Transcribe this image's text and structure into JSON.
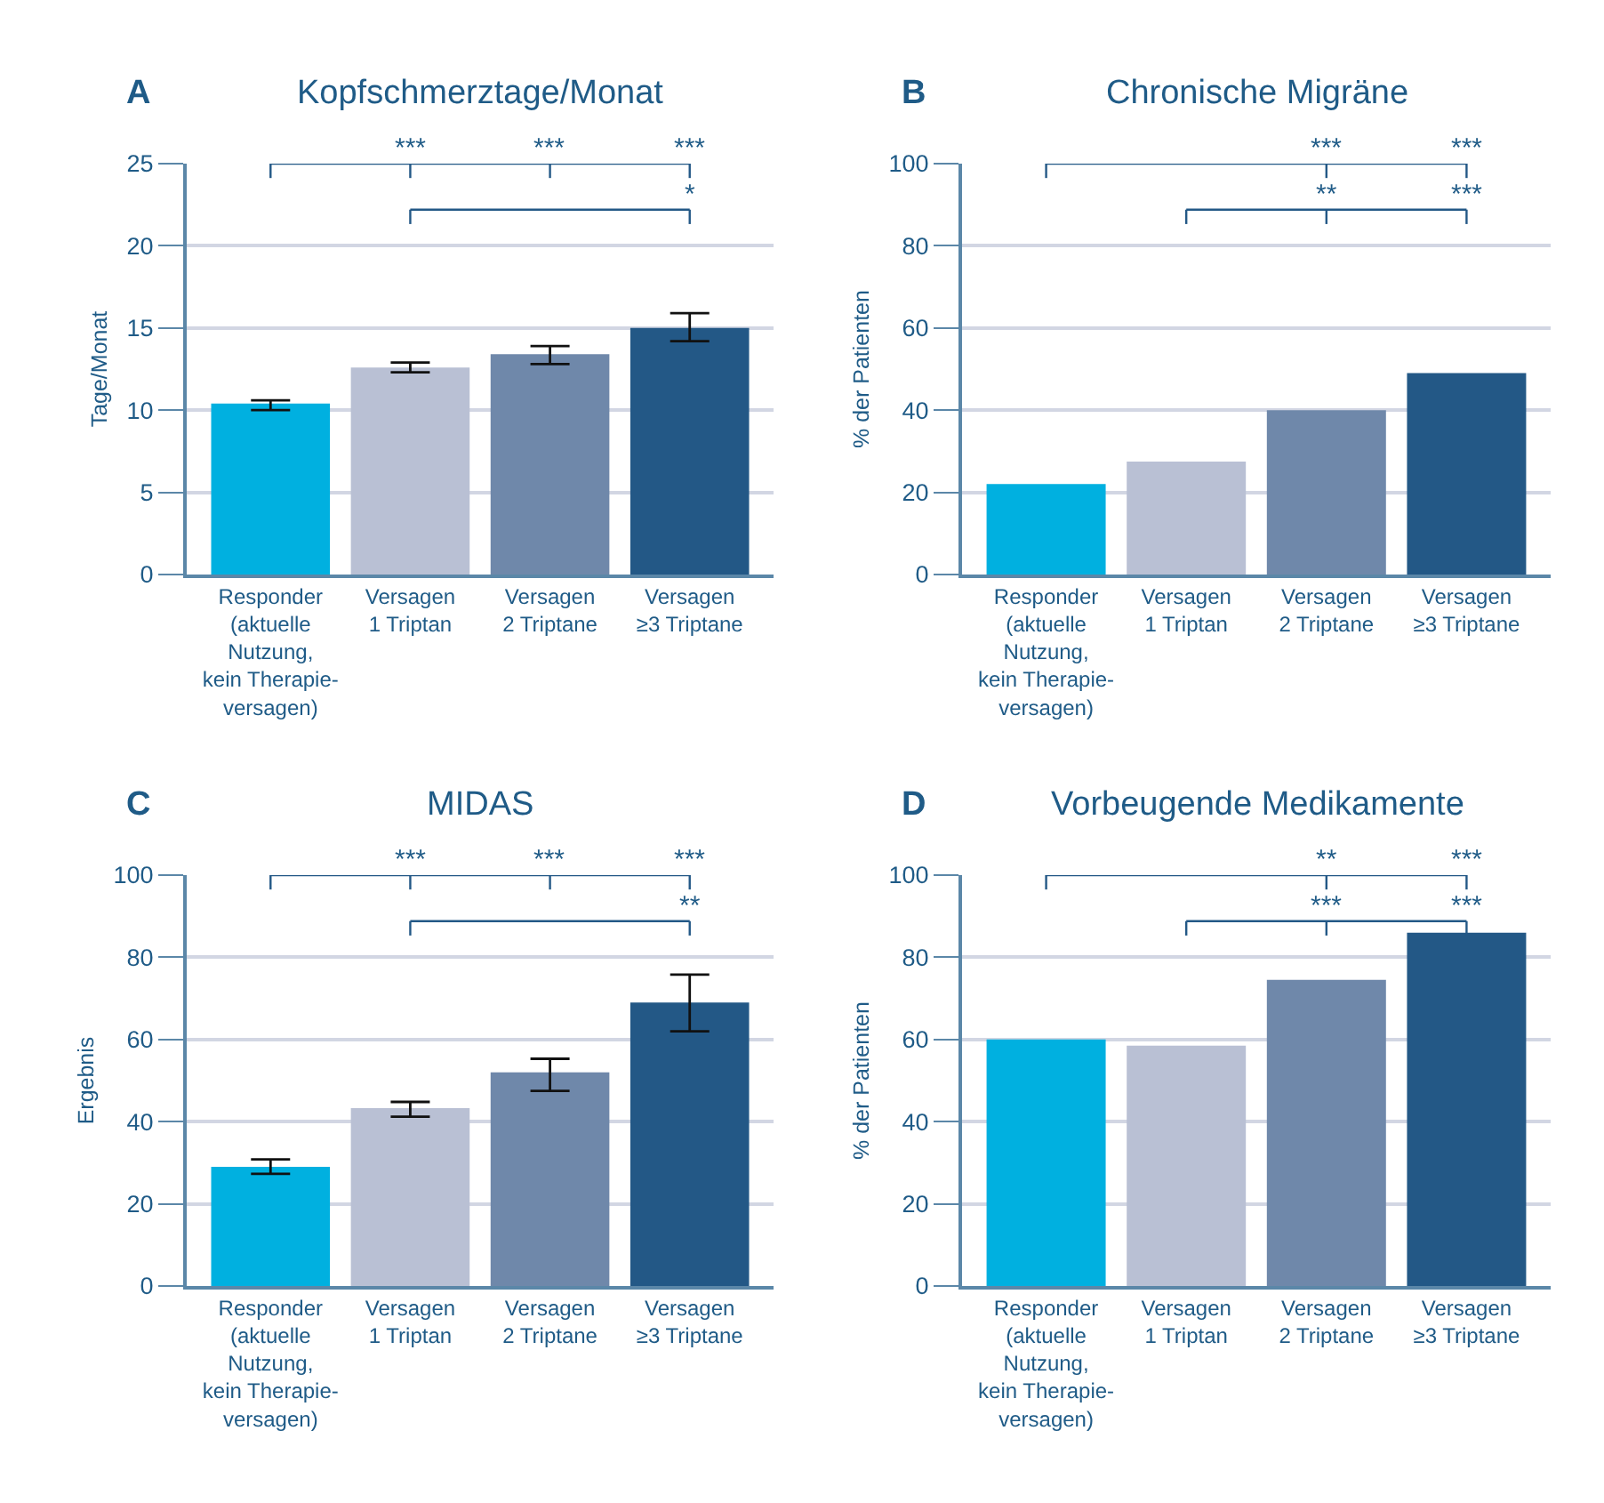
{
  "chart_data": [
    {
      "type": "bar",
      "title": "Kopfschmerztage/Monat",
      "ylabel": "Tage/Monat",
      "categories": [
        "Responder\n(aktuelle\nNutzung,\nkein Therapie-\nversagen)",
        "Versagen\n1 Triptan",
        "Versagen\n2 Triptane",
        "Versagen\n≥3 Triptane"
      ],
      "values": [
        10.4,
        12.6,
        13.4,
        15.0
      ],
      "errors": [
        [
          10.0,
          10.6
        ],
        [
          12.3,
          12.9
        ],
        [
          12.8,
          13.9
        ],
        [
          14.2,
          15.9
        ]
      ],
      "colors": [
        "#00b0e0",
        "#b9c0d4",
        "#6f88aa",
        "#235886"
      ],
      "ylim": [
        0,
        25
      ],
      "yticks": [
        0,
        5,
        10,
        15,
        20,
        25
      ],
      "grid": "y",
      "annotations": [
        "A",
        "***",
        "***",
        "***",
        "*"
      ]
    },
    {
      "type": "bar",
      "title": "Chronische Migräne",
      "ylabel": "% der Patienten",
      "categories": [
        "Responder\n(aktuelle\nNutzung,\nkein Therapie-\nversagen)",
        "Versagen\n1 Triptan",
        "Versagen\n2 Triptane",
        "Versagen\n≥3 Triptane"
      ],
      "values": [
        22,
        27.5,
        40,
        49
      ],
      "colors": [
        "#00b0e0",
        "#b9c0d4",
        "#6f88aa",
        "#235886"
      ],
      "ylim": [
        0,
        100
      ],
      "yticks": [
        0,
        20,
        40,
        60,
        80,
        100
      ],
      "grid": "y",
      "annotations": [
        "B",
        "***",
        "***",
        "**",
        "***"
      ]
    },
    {
      "type": "bar",
      "title": "MIDAS",
      "ylabel": "Ergebnis",
      "categories": [
        "Responder\n(aktuelle\nNutzung,\nkein Therapie-\nversagen)",
        "Versagen\n1 Triptan",
        "Versagen\n2 Triptane",
        "Versagen\n≥3 Triptane"
      ],
      "values": [
        29,
        43.3,
        52,
        69
      ],
      "errors": [
        [
          27.3,
          30.8
        ],
        [
          41.2,
          44.8
        ],
        [
          47.5,
          55.3
        ],
        [
          62,
          75.8
        ]
      ],
      "colors": [
        "#00b0e0",
        "#b9c0d4",
        "#6f88aa",
        "#235886"
      ],
      "ylim": [
        0,
        100
      ],
      "yticks": [
        0,
        20,
        40,
        60,
        80,
        100
      ],
      "grid": "y",
      "annotations": [
        "C",
        "***",
        "***",
        "***",
        "**"
      ]
    },
    {
      "type": "bar",
      "title": "Vorbeugende Medikamente",
      "ylabel": "% der Patienten",
      "categories": [
        "Responder\n(aktuelle\nNutzung,\nkein Therapie-\nversagen)",
        "Versagen\n1 Triptan",
        "Versagen\n2 Triptane",
        "Versagen\n≥3 Triptane"
      ],
      "values": [
        60,
        58.5,
        74.5,
        86
      ],
      "colors": [
        "#00b0e0",
        "#b9c0d4",
        "#6f88aa",
        "#235886"
      ],
      "ylim": [
        0,
        100
      ],
      "yticks": [
        0,
        20,
        40,
        60,
        80,
        100
      ],
      "grid": "y",
      "annotations": [
        "D",
        "**",
        "***",
        "***",
        "***"
      ]
    }
  ]
}
